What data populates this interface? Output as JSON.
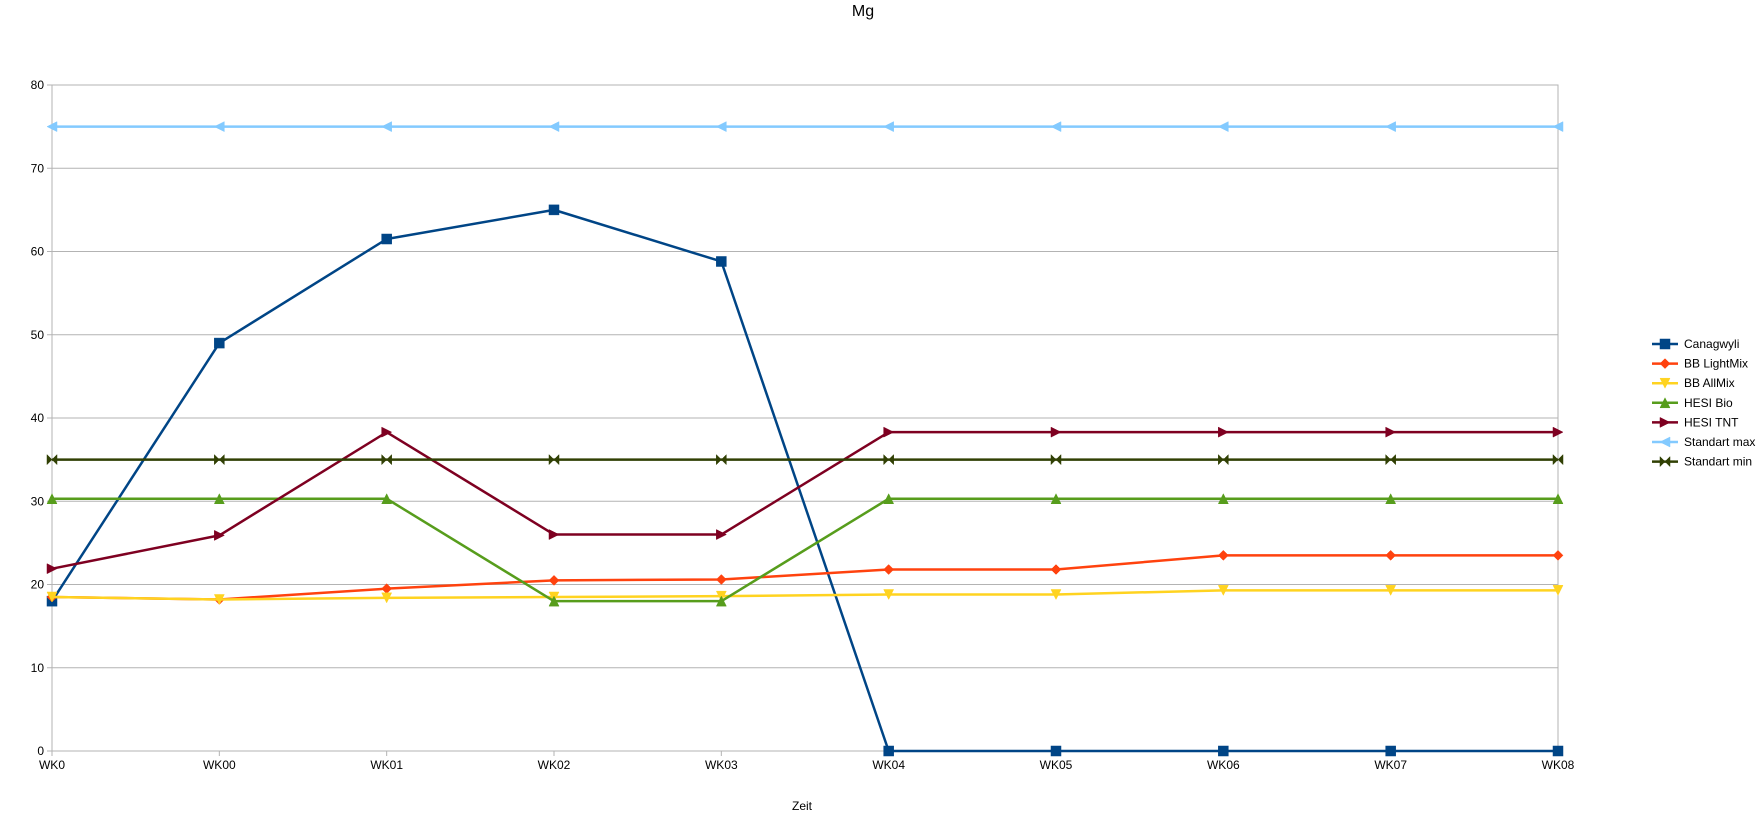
{
  "chart_data": {
    "type": "line",
    "title": "Mg",
    "xlabel": "Zeit",
    "ylabel": "",
    "ylim": [
      0,
      80
    ],
    "yticks": [
      "0",
      "10",
      "20",
      "30",
      "40",
      "50",
      "60",
      "70",
      "80"
    ],
    "categories": [
      "WK0",
      "WK00",
      "WK01",
      "WK02",
      "WK03",
      "WK04",
      "WK05",
      "WK06",
      "WK07",
      "WK08"
    ],
    "grid": true,
    "legend_position": "right",
    "series": [
      {
        "name": "Canagwyli",
        "color": "#004586",
        "marker": "square",
        "values": [
          18,
          49,
          61.5,
          65,
          58.8,
          0,
          0,
          0,
          0,
          0
        ]
      },
      {
        "name": "BB LightMix",
        "color": "#ff420e",
        "marker": "diamond",
        "values": [
          18.5,
          18.2,
          19.5,
          20.5,
          20.6,
          21.8,
          21.8,
          23.5,
          23.5,
          23.5
        ]
      },
      {
        "name": "BB AllMix",
        "color": "#ffd320",
        "marker": "triangle-down",
        "values": [
          18.5,
          18.2,
          18.4,
          18.5,
          18.6,
          18.8,
          18.8,
          19.3,
          19.3,
          19.3
        ]
      },
      {
        "name": "HESI Bio",
        "color": "#579d1c",
        "marker": "triangle-up",
        "values": [
          30.3,
          30.3,
          30.3,
          18,
          18,
          30.3,
          30.3,
          30.3,
          30.3,
          30.3
        ]
      },
      {
        "name": "HESI TNT",
        "color": "#7e0021",
        "marker": "triangle-right",
        "values": [
          21.9,
          25.9,
          38.3,
          26,
          26,
          38.3,
          38.3,
          38.3,
          38.3,
          38.3
        ]
      },
      {
        "name": "Standart max",
        "color": "#83caff",
        "marker": "triangle-left",
        "values": [
          75,
          75,
          75,
          75,
          75,
          75,
          75,
          75,
          75,
          75
        ]
      },
      {
        "name": "Standart min",
        "color": "#314004",
        "marker": "bowtie",
        "values": [
          35,
          35,
          35,
          35,
          35,
          35,
          35,
          35,
          35,
          35
        ]
      }
    ]
  }
}
